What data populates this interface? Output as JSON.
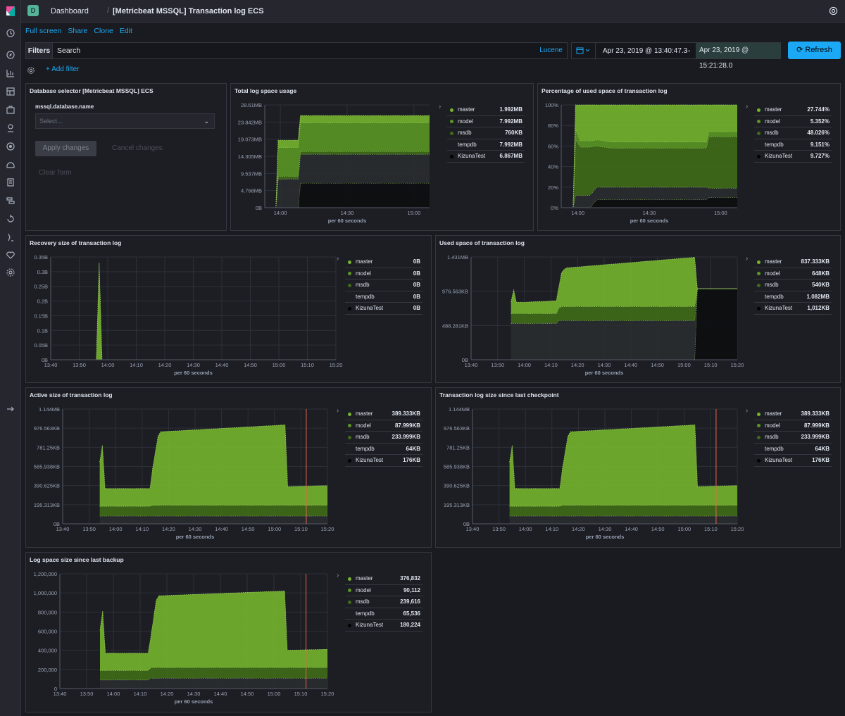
{
  "app": {
    "space_initial": "D"
  },
  "breadcrumb": {
    "root": "Dashboard",
    "current": "[Metricbeat MSSQL] Transaction log ECS"
  },
  "actions": [
    "Full screen",
    "Share",
    "Clone",
    "Edit"
  ],
  "query": {
    "filters_label": "Filters",
    "placeholder": "Search",
    "language": "Lucene"
  },
  "time": {
    "start": "Apr 23, 2019 @ 13:40:47.3",
    "arrow": "→",
    "end": "Apr 23, 2019 @ 15:21:28.0",
    "refresh_label": "Refresh"
  },
  "filter_bar": {
    "add_label": "+ Add filter"
  },
  "colors": {
    "master": "#75b42d",
    "model": "#5a9623",
    "msdb": "#3f6b18",
    "tempdb": "#2a2c30",
    "KizunaTest": "#0c0d10",
    "accent": "#1ba9f5"
  },
  "selector": {
    "title": "Database selector [Metricbeat MSSQL] ECS",
    "field_label": "mssql.database.name",
    "select_placeholder": "Select...",
    "apply": "Apply changes",
    "cancel": "Cancel changes",
    "clear": "Clear form"
  },
  "chart_data": [
    {
      "id": "total_log_space",
      "title": "Total log space usage",
      "type": "area",
      "xlabel": "per 60 seconds",
      "x_ticks": [
        "14:00",
        "14:30",
        "15:00"
      ],
      "y_ticks": [
        "0B",
        "4.768MB",
        "9.537MB",
        "14.305MB",
        "19.073MB",
        "23.842MB",
        "28.61MB"
      ],
      "x_range": [
        "13:53",
        "15:07"
      ],
      "y_range_mb": [
        0,
        28.61
      ],
      "x": [
        "13:53",
        "13:56",
        "13:58",
        "13:59",
        "14:08",
        "14:09",
        "15:07"
      ],
      "series": [
        {
          "name": "KizunaTest",
          "values": [
            0,
            0,
            0,
            0,
            0,
            6.87,
            6.87
          ]
        },
        {
          "name": "tempdb",
          "values": [
            0,
            0,
            0,
            8,
            8,
            8,
            8
          ]
        },
        {
          "name": "msdb",
          "values": [
            0,
            0,
            0,
            0.76,
            0.76,
            0.76,
            0.76
          ]
        },
        {
          "name": "model",
          "values": [
            0,
            0,
            0,
            8,
            8,
            8,
            8
          ]
        },
        {
          "name": "master",
          "values": [
            0,
            0,
            0,
            2,
            2,
            2,
            2
          ]
        }
      ],
      "legend": [
        {
          "name": "master",
          "value": "1.992MB"
        },
        {
          "name": "model",
          "value": "7.992MB"
        },
        {
          "name": "msdb",
          "value": "760KB"
        },
        {
          "name": "tempdb",
          "value": "7.992MB"
        },
        {
          "name": "KizunaTest",
          "value": "6.867MB"
        }
      ]
    },
    {
      "id": "pct_used",
      "title": "Percentage of used space of transaction log",
      "type": "area",
      "xlabel": "per 60 seconds",
      "x_ticks": [
        "14:00",
        "14:30",
        "15:00"
      ],
      "y_ticks": [
        "0%",
        "20%",
        "40%",
        "60%",
        "80%",
        "100%"
      ],
      "x_range": [
        "13:53",
        "15:07"
      ],
      "y_range": [
        0,
        100
      ],
      "x": [
        "13:53",
        "13:58",
        "13:59",
        "14:01",
        "14:05",
        "14:08",
        "14:14",
        "14:54",
        "14:55",
        "15:07"
      ],
      "series": [
        {
          "name": "KizunaTest",
          "values": [
            0,
            0,
            0,
            0,
            0,
            8,
            8,
            8,
            10,
            10
          ]
        },
        {
          "name": "tempdb",
          "values": [
            0,
            0,
            12,
            12,
            12,
            12,
            12,
            12,
            9,
            9
          ]
        },
        {
          "name": "msdb",
          "values": [
            0,
            0,
            55,
            47,
            47,
            40,
            38,
            38,
            50,
            50
          ]
        },
        {
          "name": "model",
          "values": [
            0,
            0,
            10,
            6,
            6,
            6,
            6,
            6,
            5,
            5
          ]
        },
        {
          "name": "master",
          "values": [
            0,
            0,
            23,
            35,
            35,
            34,
            36,
            36,
            26,
            26
          ]
        }
      ],
      "legend": [
        {
          "name": "master",
          "value": "27.744%"
        },
        {
          "name": "model",
          "value": "5.352%"
        },
        {
          "name": "msdb",
          "value": "48.026%"
        },
        {
          "name": "tempdb",
          "value": "9.151%"
        },
        {
          "name": "KizunaTest",
          "value": "9.727%"
        }
      ]
    },
    {
      "id": "recovery_size",
      "title": "Recovery size of transaction log",
      "type": "area",
      "xlabel": "per 60 seconds",
      "x_ticks": [
        "13:40",
        "13:50",
        "14:00",
        "14:10",
        "14:20",
        "14:30",
        "14:40",
        "14:50",
        "15:00",
        "15:10",
        "15:20"
      ],
      "y_ticks": [
        "0B",
        "0.05B",
        "0.1B",
        "0.15B",
        "0.2B",
        "0.25B",
        "0.3B",
        "0.35B"
      ],
      "x_range": [
        "13:40",
        "15:20"
      ],
      "y_range": [
        0,
        0.35
      ],
      "x": [
        "13:56",
        "13:57",
        "13:58",
        "15:20"
      ],
      "series": [
        {
          "name": "KizunaTest",
          "values": [
            0,
            0,
            0,
            0
          ]
        },
        {
          "name": "tempdb",
          "values": [
            0,
            0,
            0,
            0
          ]
        },
        {
          "name": "msdb",
          "values": [
            0,
            0,
            0,
            0
          ]
        },
        {
          "name": "model",
          "values": [
            0,
            0,
            0,
            0
          ]
        },
        {
          "name": "master",
          "values": [
            0,
            0.33,
            0,
            0
          ]
        }
      ],
      "legend": [
        {
          "name": "master",
          "value": "0B"
        },
        {
          "name": "model",
          "value": "0B"
        },
        {
          "name": "msdb",
          "value": "0B"
        },
        {
          "name": "tempdb",
          "value": "0B"
        },
        {
          "name": "KizunaTest",
          "value": "0B"
        }
      ]
    },
    {
      "id": "used_space",
      "title": "Used space of transaction log",
      "type": "area",
      "xlabel": "per 60 seconds",
      "x_ticks": [
        "13:40",
        "13:50",
        "14:00",
        "14:10",
        "14:20",
        "14:30",
        "14:40",
        "14:50",
        "15:00",
        "15:10",
        "15:20"
      ],
      "y_ticks": [
        "0B",
        "488.281KB",
        "976.563KB",
        "1.431MB"
      ],
      "x_range": [
        "13:40",
        "15:20"
      ],
      "y_range_kb": [
        0,
        1465
      ],
      "x": [
        "13:55",
        "13:56",
        "13:57",
        "14:00",
        "14:12",
        "14:13",
        "14:14",
        "14:15",
        "14:16",
        "15:04",
        "15:05",
        "15:20"
      ],
      "series": [
        {
          "name": "KizunaTest",
          "values": [
            0,
            0,
            0,
            0,
            0,
            0,
            0,
            0,
            0,
            0,
            1012,
            1012
          ]
        },
        {
          "name": "tempdb",
          "values": [
            520,
            520,
            520,
            520,
            520,
            560,
            560,
            560,
            560,
            560,
            0,
            0
          ]
        },
        {
          "name": "msdb",
          "values": [
            140,
            140,
            140,
            140,
            140,
            180,
            200,
            200,
            200,
            200,
            0,
            0
          ]
        },
        {
          "name": "model",
          "values": [
            0,
            0,
            0,
            0,
            0,
            0,
            0,
            0,
            0,
            0,
            0,
            0
          ]
        },
        {
          "name": "master",
          "values": [
            160,
            340,
            160,
            160,
            180,
            300,
            480,
            530,
            550,
            700,
            0,
            0
          ]
        }
      ],
      "legend": [
        {
          "name": "master",
          "value": "837.333KB"
        },
        {
          "name": "model",
          "value": "648KB"
        },
        {
          "name": "msdb",
          "value": "540KB"
        },
        {
          "name": "tempdb",
          "value": "1.082MB"
        },
        {
          "name": "KizunaTest",
          "value": "1,012KB"
        }
      ]
    },
    {
      "id": "active_size",
      "title": "Active size of transaction log",
      "type": "area",
      "xlabel": "per 60 seconds",
      "x_ticks": [
        "13:40",
        "13:50",
        "14:00",
        "14:10",
        "14:20",
        "14:30",
        "14:40",
        "14:50",
        "15:00",
        "15:10",
        "15:20"
      ],
      "y_ticks": [
        "0B",
        "195.313KB",
        "390.625KB",
        "585.938KB",
        "781.25KB",
        "976.563KB",
        "1.144MB"
      ],
      "x_range": [
        "13:40",
        "15:20"
      ],
      "y_range_kb": [
        0,
        1171.9
      ],
      "x": [
        "13:54",
        "13:55",
        "13:56",
        "13:57",
        "14:13",
        "14:14",
        "14:16",
        "14:17",
        "15:04",
        "15:05",
        "15:20"
      ],
      "series": [
        {
          "name": "KizunaTest",
          "values": [
            0,
            0,
            0,
            0,
            0,
            0,
            0,
            0,
            0,
            0,
            0
          ]
        },
        {
          "name": "tempdb",
          "values": [
            80,
            80,
            80,
            80,
            80,
            80,
            80,
            80,
            80,
            80,
            80
          ]
        },
        {
          "name": "msdb",
          "values": [
            100,
            100,
            100,
            100,
            100,
            110,
            110,
            110,
            110,
            110,
            110
          ]
        },
        {
          "name": "model",
          "values": [
            0,
            0,
            0,
            0,
            0,
            0,
            0,
            0,
            0,
            0,
            0
          ]
        },
        {
          "name": "master",
          "values": [
            450,
            620,
            180,
            180,
            180,
            380,
            700,
            750,
            820,
            190,
            200
          ]
        }
      ],
      "legend": [
        {
          "name": "master",
          "value": "389.333KB"
        },
        {
          "name": "model",
          "value": "87.999KB"
        },
        {
          "name": "msdb",
          "value": "233.999KB"
        },
        {
          "name": "tempdb",
          "value": "64KB"
        },
        {
          "name": "KizunaTest",
          "value": "176KB"
        }
      ]
    },
    {
      "id": "since_checkpoint",
      "title": "Transaction log size since last checkpoint",
      "type": "area",
      "xlabel": "per 60 seconds",
      "x_ticks": [
        "13:40",
        "13:50",
        "14:00",
        "14:10",
        "14:20",
        "14:30",
        "14:40",
        "14:50",
        "15:00",
        "15:10",
        "15:20"
      ],
      "y_ticks": [
        "0B",
        "195.313KB",
        "390.625KB",
        "585.938KB",
        "781.25KB",
        "976.563KB",
        "1.144MB"
      ],
      "x_range": [
        "13:40",
        "15:20"
      ],
      "y_range_kb": [
        0,
        1171.9
      ],
      "x": [
        "13:54",
        "13:55",
        "13:56",
        "13:57",
        "14:13",
        "14:14",
        "14:16",
        "14:17",
        "15:04",
        "15:05",
        "15:20"
      ],
      "series": [
        {
          "name": "KizunaTest",
          "values": [
            0,
            0,
            0,
            0,
            0,
            0,
            0,
            0,
            0,
            0,
            0
          ]
        },
        {
          "name": "tempdb",
          "values": [
            80,
            80,
            80,
            80,
            80,
            80,
            80,
            80,
            80,
            80,
            80
          ]
        },
        {
          "name": "msdb",
          "values": [
            100,
            100,
            100,
            100,
            100,
            110,
            110,
            110,
            110,
            110,
            110
          ]
        },
        {
          "name": "model",
          "values": [
            0,
            0,
            0,
            0,
            0,
            0,
            0,
            0,
            0,
            0,
            0
          ]
        },
        {
          "name": "master",
          "values": [
            450,
            620,
            180,
            180,
            180,
            380,
            700,
            750,
            820,
            190,
            200
          ]
        }
      ],
      "legend": [
        {
          "name": "master",
          "value": "389.333KB"
        },
        {
          "name": "model",
          "value": "87.999KB"
        },
        {
          "name": "msdb",
          "value": "233.999KB"
        },
        {
          "name": "tempdb",
          "value": "64KB"
        },
        {
          "name": "KizunaTest",
          "value": "176KB"
        }
      ]
    },
    {
      "id": "since_backup",
      "title": "Log space size since last backup",
      "type": "area",
      "xlabel": "per 60 seconds",
      "x_ticks": [
        "13:40",
        "13:50",
        "14:00",
        "14:10",
        "14:20",
        "14:30",
        "14:40",
        "14:50",
        "15:00",
        "15:10",
        "15:20"
      ],
      "y_ticks": [
        "0",
        "200,000",
        "400,000",
        "600,000",
        "800,000",
        "1,000,000",
        "1,200,000"
      ],
      "x_range": [
        "13:40",
        "15:20"
      ],
      "y_range": [
        0,
        1200000
      ],
      "x": [
        "13:55",
        "13:56",
        "13:57",
        "14:13",
        "14:14",
        "14:16",
        "14:17",
        "15:04",
        "15:05",
        "15:20"
      ],
      "series": [
        {
          "name": "KizunaTest",
          "values": [
            0,
            0,
            0,
            0,
            0,
            0,
            0,
            0,
            0,
            0
          ]
        },
        {
          "name": "tempdb",
          "values": [
            90000,
            90000,
            90000,
            90000,
            110000,
            110000,
            110000,
            110000,
            110000,
            110000
          ]
        },
        {
          "name": "msdb",
          "values": [
            100000,
            100000,
            100000,
            100000,
            110000,
            110000,
            110000,
            110000,
            110000,
            110000
          ]
        },
        {
          "name": "model",
          "values": [
            0,
            0,
            0,
            0,
            0,
            0,
            0,
            0,
            0,
            0
          ]
        },
        {
          "name": "master",
          "values": [
            420000,
            620000,
            180000,
            180000,
            320000,
            700000,
            750000,
            800000,
            180000,
            190000
          ]
        }
      ],
      "legend": [
        {
          "name": "master",
          "value": "376,832"
        },
        {
          "name": "model",
          "value": "90,112"
        },
        {
          "name": "msdb",
          "value": "239,616"
        },
        {
          "name": "tempdb",
          "value": "65,536"
        },
        {
          "name": "KizunaTest",
          "value": "180,224"
        }
      ]
    }
  ]
}
